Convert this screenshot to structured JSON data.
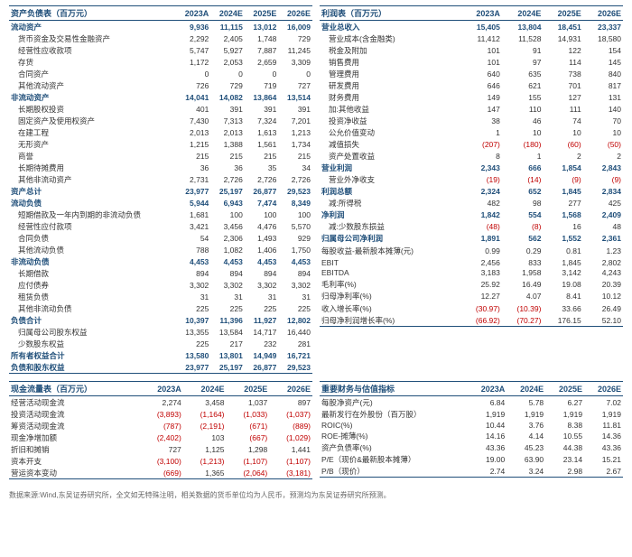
{
  "colors": {
    "header": "#1f4e79",
    "negative": "#c00000",
    "text": "#333333",
    "bg": "#ffffff"
  },
  "years": [
    "2023A",
    "2024E",
    "2025E",
    "2026E"
  ],
  "balance_sheet": {
    "title": "资产负债表（百万元）",
    "sections": [
      {
        "label": "流动资产",
        "bold": true,
        "vals": [
          "9,936",
          "11,115",
          "13,012",
          "16,009"
        ]
      },
      {
        "label": "货币资金及交易性金融资产",
        "indent": true,
        "vals": [
          "2,292",
          "2,405",
          "1,748",
          "729"
        ]
      },
      {
        "label": "经营性应收款项",
        "indent": true,
        "vals": [
          "5,747",
          "5,927",
          "7,887",
          "11,245"
        ]
      },
      {
        "label": "存货",
        "indent": true,
        "vals": [
          "1,172",
          "2,053",
          "2,659",
          "3,309"
        ]
      },
      {
        "label": "合同资产",
        "indent": true,
        "vals": [
          "0",
          "0",
          "0",
          "0"
        ]
      },
      {
        "label": "其他流动资产",
        "indent": true,
        "vals": [
          "726",
          "729",
          "719",
          "727"
        ]
      },
      {
        "label": "非流动资产",
        "bold": true,
        "vals": [
          "14,041",
          "14,082",
          "13,864",
          "13,514"
        ]
      },
      {
        "label": "长期股权投资",
        "indent": true,
        "vals": [
          "401",
          "391",
          "391",
          "391"
        ]
      },
      {
        "label": "固定资产及使用权资产",
        "indent": true,
        "vals": [
          "7,430",
          "7,313",
          "7,324",
          "7,201"
        ]
      },
      {
        "label": "在建工程",
        "indent": true,
        "vals": [
          "2,013",
          "2,013",
          "1,613",
          "1,213"
        ]
      },
      {
        "label": "无形资产",
        "indent": true,
        "vals": [
          "1,215",
          "1,388",
          "1,561",
          "1,734"
        ]
      },
      {
        "label": "商誉",
        "indent": true,
        "vals": [
          "215",
          "215",
          "215",
          "215"
        ]
      },
      {
        "label": "长期待摊费用",
        "indent": true,
        "vals": [
          "36",
          "36",
          "35",
          "34"
        ]
      },
      {
        "label": "其他非流动资产",
        "indent": true,
        "vals": [
          "2,731",
          "2,726",
          "2,726",
          "2,726"
        ]
      },
      {
        "label": "资产总计",
        "bold": true,
        "vals": [
          "23,977",
          "25,197",
          "26,877",
          "29,523"
        ]
      },
      {
        "label": "流动负债",
        "bold": true,
        "vals": [
          "5,944",
          "6,943",
          "7,474",
          "8,349"
        ]
      },
      {
        "label": "短期借款及一年内到期的非流动负债",
        "indent": true,
        "vals": [
          "1,681",
          "100",
          "100",
          "100"
        ]
      },
      {
        "label": "经营性应付款项",
        "indent": true,
        "vals": [
          "3,421",
          "3,456",
          "4,476",
          "5,570"
        ]
      },
      {
        "label": "合同负债",
        "indent": true,
        "vals": [
          "54",
          "2,306",
          "1,493",
          "929"
        ]
      },
      {
        "label": "其他流动负债",
        "indent": true,
        "vals": [
          "788",
          "1,082",
          "1,406",
          "1,750"
        ]
      },
      {
        "label": "非流动负债",
        "bold": true,
        "vals": [
          "4,453",
          "4,453",
          "4,453",
          "4,453"
        ]
      },
      {
        "label": "长期借款",
        "indent": true,
        "vals": [
          "894",
          "894",
          "894",
          "894"
        ]
      },
      {
        "label": "应付债券",
        "indent": true,
        "vals": [
          "3,302",
          "3,302",
          "3,302",
          "3,302"
        ]
      },
      {
        "label": "租赁负债",
        "indent": true,
        "vals": [
          "31",
          "31",
          "31",
          "31"
        ]
      },
      {
        "label": "其他非流动负债",
        "indent": true,
        "vals": [
          "225",
          "225",
          "225",
          "225"
        ]
      },
      {
        "label": "负债合计",
        "bold": true,
        "vals": [
          "10,397",
          "11,396",
          "11,927",
          "12,802"
        ]
      },
      {
        "label": "归属母公司股东权益",
        "indent": true,
        "vals": [
          "13,355",
          "13,584",
          "14,717",
          "16,440"
        ]
      },
      {
        "label": "少数股东权益",
        "indent": true,
        "vals": [
          "225",
          "217",
          "232",
          "281"
        ]
      },
      {
        "label": "所有者权益合计",
        "bold": true,
        "vals": [
          "13,580",
          "13,801",
          "14,949",
          "16,721"
        ]
      },
      {
        "label": "负债和股东权益",
        "bold": true,
        "vals": [
          "23,977",
          "25,197",
          "26,877",
          "29,523"
        ]
      }
    ]
  },
  "income_statement": {
    "title": "利润表（百万元）",
    "sections": [
      {
        "label": "营业总收入",
        "bold": true,
        "vals": [
          "15,405",
          "13,804",
          "18,451",
          "23,337"
        ]
      },
      {
        "label": "营业成本(含金融类)",
        "indent": true,
        "vals": [
          "11,412",
          "11,528",
          "14,931",
          "18,580"
        ]
      },
      {
        "label": "税金及附加",
        "indent": true,
        "vals": [
          "101",
          "91",
          "122",
          "154"
        ]
      },
      {
        "label": "销售费用",
        "indent": true,
        "vals": [
          "101",
          "97",
          "114",
          "145"
        ]
      },
      {
        "label": "管理费用",
        "indent": true,
        "vals": [
          "640",
          "635",
          "738",
          "840"
        ]
      },
      {
        "label": "研发费用",
        "indent": true,
        "vals": [
          "646",
          "621",
          "701",
          "817"
        ]
      },
      {
        "label": "财务费用",
        "indent": true,
        "vals": [
          "149",
          "155",
          "127",
          "131"
        ]
      },
      {
        "label": "加:其他收益",
        "indent": true,
        "vals": [
          "147",
          "110",
          "111",
          "140"
        ]
      },
      {
        "label": "投资净收益",
        "indent": true,
        "vals": [
          "38",
          "46",
          "74",
          "70"
        ]
      },
      {
        "label": "公允价值变动",
        "indent": true,
        "vals": [
          "1",
          "10",
          "10",
          "10"
        ]
      },
      {
        "label": "减值损失",
        "indent": true,
        "neg": [
          true,
          true,
          true,
          true
        ],
        "vals": [
          "(207)",
          "(180)",
          "(60)",
          "(50)"
        ]
      },
      {
        "label": "资产处置收益",
        "indent": true,
        "vals": [
          "8",
          "1",
          "2",
          "2"
        ]
      },
      {
        "label": "营业利润",
        "bold": true,
        "vals": [
          "2,343",
          "666",
          "1,854",
          "2,843"
        ]
      },
      {
        "label": "营业外净收支",
        "indent": true,
        "neg": [
          true,
          true,
          true,
          true
        ],
        "vals": [
          "(19)",
          "(14)",
          "(9)",
          "(9)"
        ]
      },
      {
        "label": "利润总额",
        "bold": true,
        "vals": [
          "2,324",
          "652",
          "1,845",
          "2,834"
        ]
      },
      {
        "label": "减:所得税",
        "indent": true,
        "vals": [
          "482",
          "98",
          "277",
          "425"
        ]
      },
      {
        "label": "净利润",
        "bold": true,
        "vals": [
          "1,842",
          "554",
          "1,568",
          "2,409"
        ]
      },
      {
        "label": "减:少数股东损益",
        "indent": true,
        "neg": [
          true,
          true,
          false,
          false
        ],
        "vals": [
          "(48)",
          "(8)",
          "16",
          "48"
        ]
      },
      {
        "label": "归属母公司净利润",
        "bold": true,
        "vals": [
          "1,891",
          "562",
          "1,552",
          "2,361"
        ]
      },
      {
        "label": "",
        "vals": [
          "",
          "",
          "",
          ""
        ]
      },
      {
        "label": "每股收益-最新股本摊薄(元)",
        "vals": [
          "0.99",
          "0.29",
          "0.81",
          "1.23"
        ]
      },
      {
        "label": "",
        "vals": [
          "",
          "",
          "",
          ""
        ]
      },
      {
        "label": "EBIT",
        "vals": [
          "2,456",
          "833",
          "1,845",
          "2,802"
        ]
      },
      {
        "label": "EBITDA",
        "vals": [
          "3,183",
          "1,958",
          "3,142",
          "4,243"
        ]
      },
      {
        "label": "",
        "vals": [
          "",
          "",
          "",
          ""
        ]
      },
      {
        "label": "毛利率(%)",
        "vals": [
          "25.92",
          "16.49",
          "19.08",
          "20.39"
        ]
      },
      {
        "label": "归母净利率(%)",
        "vals": [
          "12.27",
          "4.07",
          "8.41",
          "10.12"
        ]
      },
      {
        "label": "",
        "vals": [
          "",
          "",
          "",
          ""
        ]
      },
      {
        "label": "收入增长率(%)",
        "neg": [
          true,
          true,
          false,
          false
        ],
        "vals": [
          "(30.97)",
          "(10.39)",
          "33.66",
          "26.49"
        ]
      },
      {
        "label": "归母净利润增长率(%)",
        "neg": [
          true,
          true,
          false,
          false
        ],
        "vals": [
          "(66.92)",
          "(70.27)",
          "176.15",
          "52.10"
        ]
      }
    ]
  },
  "cash_flow": {
    "title": "现金流量表（百万元）",
    "sections": [
      {
        "label": "经营活动现金流",
        "vals": [
          "2,274",
          "3,458",
          "1,037",
          "897"
        ]
      },
      {
        "label": "投资活动现金流",
        "neg": [
          true,
          true,
          true,
          true
        ],
        "vals": [
          "(3,893)",
          "(1,164)",
          "(1,033)",
          "(1,037)"
        ]
      },
      {
        "label": "筹资活动现金流",
        "neg": [
          true,
          true,
          true,
          true
        ],
        "vals": [
          "(787)",
          "(2,191)",
          "(671)",
          "(889)"
        ]
      },
      {
        "label": "现金净增加额",
        "neg": [
          true,
          false,
          true,
          true
        ],
        "vals": [
          "(2,402)",
          "103",
          "(667)",
          "(1,029)"
        ]
      },
      {
        "label": "折旧和摊销",
        "vals": [
          "727",
          "1,125",
          "1,298",
          "1,441"
        ]
      },
      {
        "label": "资本开支",
        "neg": [
          true,
          true,
          true,
          true
        ],
        "vals": [
          "(3,100)",
          "(1,213)",
          "(1,107)",
          "(1,107)"
        ]
      },
      {
        "label": "营运资本变动",
        "neg": [
          true,
          false,
          true,
          true
        ],
        "vals": [
          "(669)",
          "1,365",
          "(2,064)",
          "(3,181)"
        ]
      }
    ]
  },
  "key_metrics": {
    "title": "重要财务与估值指标",
    "sections": [
      {
        "label": "每股净资产(元)",
        "vals": [
          "6.84",
          "5.78",
          "6.27",
          "7.02"
        ]
      },
      {
        "label": "最新发行在外股份（百万股）",
        "vals": [
          "1,919",
          "1,919",
          "1,919",
          "1,919"
        ]
      },
      {
        "label": "ROIC(%)",
        "vals": [
          "10.44",
          "3.76",
          "8.38",
          "11.81"
        ]
      },
      {
        "label": "ROE-摊薄(%)",
        "vals": [
          "14.16",
          "4.14",
          "10.55",
          "14.36"
        ]
      },
      {
        "label": "资产负债率(%)",
        "vals": [
          "43.36",
          "45.23",
          "44.38",
          "43.36"
        ]
      },
      {
        "label": "P/E（现价&最新股本摊薄）",
        "vals": [
          "19.00",
          "63.90",
          "23.14",
          "15.21"
        ]
      },
      {
        "label": "P/B（现价）",
        "vals": [
          "2.74",
          "3.24",
          "2.98",
          "2.67"
        ]
      }
    ]
  },
  "footnote": "数据来源:Wind,东吴证券研究所，全文如无特殊注明，相关数据的货币单位均为人民币，预测均为东吴证券研究所预测。"
}
